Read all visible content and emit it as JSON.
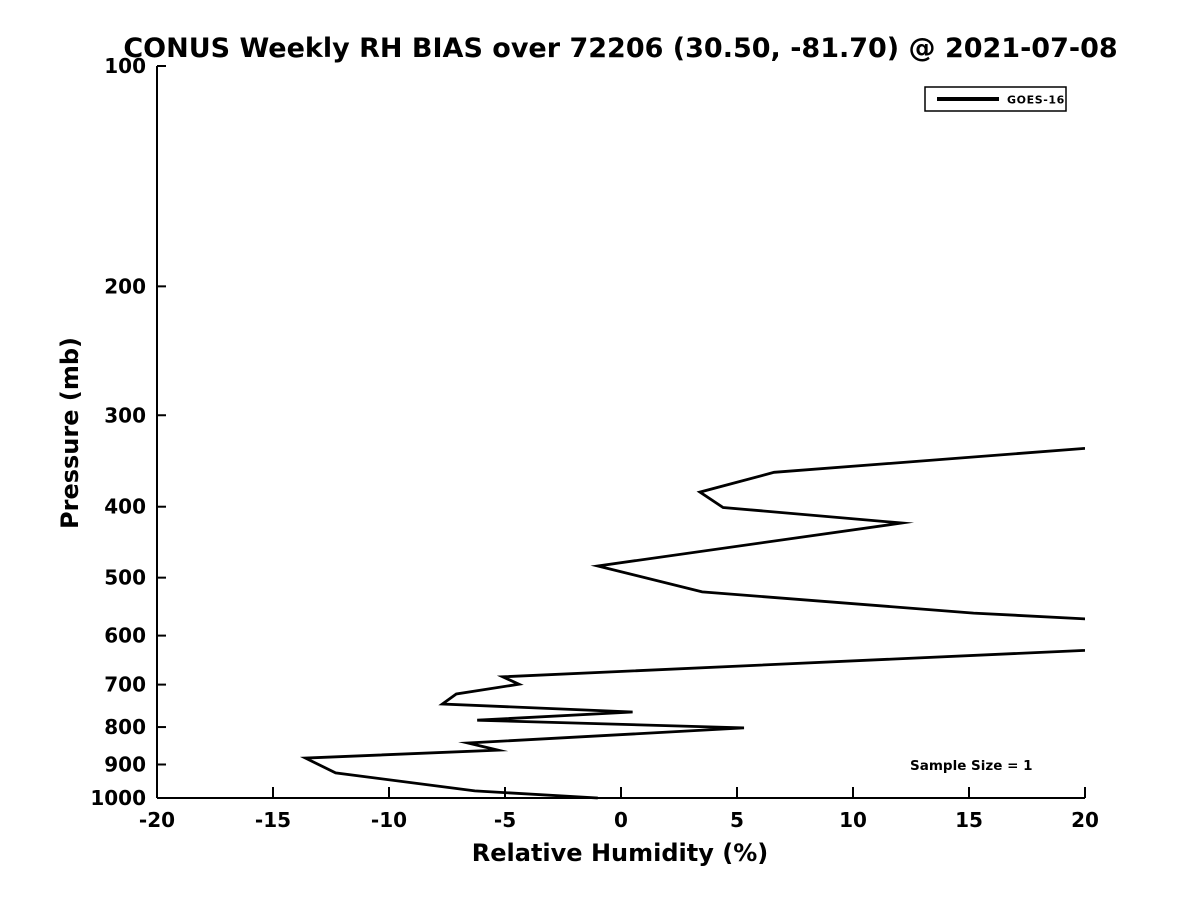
{
  "page": {
    "background_color": "#ffffff",
    "foreground_color": "#000000"
  },
  "chart_data": {
    "type": "line",
    "title": "CONUS Weekly RH BIAS over 72206 (30.50, -81.70) @ 2021-07-08",
    "xlabel": "Relative Humidity (%)",
    "ylabel": "Pressure (mb)",
    "xlim": [
      -20,
      20
    ],
    "ylim": [
      100,
      1000
    ],
    "yscale": "log10",
    "y_axis_direction": "pressure-increases-downward",
    "grid": false,
    "xticks": [
      -20,
      -15,
      -10,
      -5,
      0,
      5,
      10,
      15,
      20
    ],
    "yticks": [
      100,
      200,
      300,
      400,
      500,
      600,
      700,
      800,
      900,
      1000
    ],
    "legend": {
      "position": "top-right",
      "entries": [
        {
          "label": "GOES-16",
          "color": "#000000"
        }
      ]
    },
    "annotations": [
      {
        "text": "Sample Size = 1"
      }
    ],
    "series": [
      {
        "name": "GOES-16",
        "color": "#000000",
        "line_width": 2.8,
        "points_rh_pressure": [
          [
            20.0,
            333
          ],
          [
            6.6,
            359
          ],
          [
            3.4,
            382
          ],
          [
            4.4,
            401
          ],
          [
            12.1,
            421
          ],
          [
            -1.0,
            482
          ],
          [
            3.5,
            523
          ],
          [
            15.2,
            559
          ],
          [
            34.0,
            600
          ],
          [
            -5.1,
            683
          ],
          [
            -4.4,
            699
          ],
          [
            -7.1,
            721
          ],
          [
            -7.7,
            744
          ],
          [
            0.5,
            763
          ],
          [
            -6.2,
            783
          ],
          [
            5.3,
            802
          ],
          [
            -6.6,
            841
          ],
          [
            -5.3,
            860
          ],
          [
            -13.6,
            882
          ],
          [
            -12.3,
            924
          ],
          [
            -6.3,
            978
          ],
          [
            -1.0,
            1000
          ]
        ]
      }
    ]
  }
}
